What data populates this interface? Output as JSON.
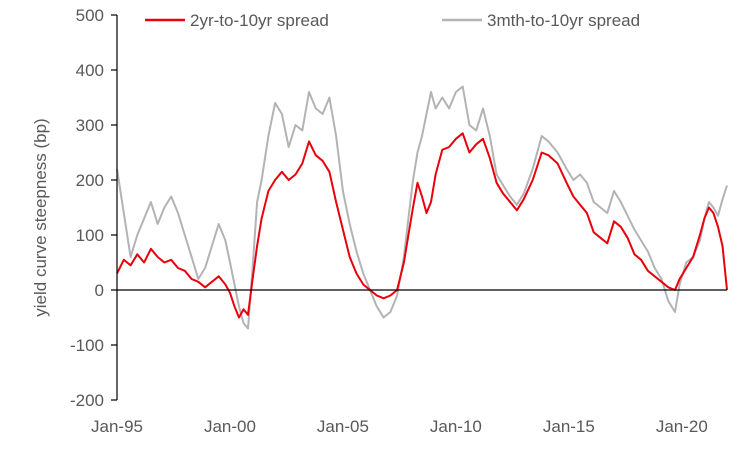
{
  "chart_data": {
    "type": "line",
    "title": "",
    "xlabel": "",
    "ylabel": "yield curve steepness (bp)",
    "ylim": [
      -200,
      500
    ],
    "yticks": [
      -200,
      -100,
      0,
      100,
      200,
      300,
      400,
      500
    ],
    "xticks": [
      "Jan-95",
      "Jan-00",
      "Jan-05",
      "Jan-10",
      "Jan-15",
      "Jan-20"
    ],
    "xlim": [
      1995.0,
      2022.0
    ],
    "grid": false,
    "legend": "top",
    "zero_line": true,
    "series": [
      {
        "name": "2yr-to-10yr spread",
        "color": "#e8000b",
        "points": [
          [
            1995.0,
            30
          ],
          [
            1995.3,
            55
          ],
          [
            1995.6,
            45
          ],
          [
            1995.9,
            65
          ],
          [
            1996.2,
            50
          ],
          [
            1996.5,
            75
          ],
          [
            1996.8,
            60
          ],
          [
            1997.1,
            50
          ],
          [
            1997.4,
            55
          ],
          [
            1997.7,
            40
          ],
          [
            1998.0,
            35
          ],
          [
            1998.3,
            20
          ],
          [
            1998.6,
            15
          ],
          [
            1998.9,
            5
          ],
          [
            1999.2,
            15
          ],
          [
            1999.5,
            25
          ],
          [
            1999.8,
            10
          ],
          [
            2000.0,
            -5
          ],
          [
            2000.2,
            -30
          ],
          [
            2000.4,
            -50
          ],
          [
            2000.6,
            -35
          ],
          [
            2000.8,
            -45
          ],
          [
            2001.0,
            20
          ],
          [
            2001.2,
            80
          ],
          [
            2001.4,
            130
          ],
          [
            2001.7,
            180
          ],
          [
            2002.0,
            200
          ],
          [
            2002.3,
            215
          ],
          [
            2002.6,
            200
          ],
          [
            2002.9,
            210
          ],
          [
            2003.2,
            230
          ],
          [
            2003.5,
            270
          ],
          [
            2003.8,
            245
          ],
          [
            2004.1,
            235
          ],
          [
            2004.4,
            215
          ],
          [
            2004.7,
            160
          ],
          [
            2005.0,
            110
          ],
          [
            2005.3,
            60
          ],
          [
            2005.6,
            30
          ],
          [
            2005.9,
            10
          ],
          [
            2006.2,
            0
          ],
          [
            2006.5,
            -10
          ],
          [
            2006.8,
            -15
          ],
          [
            2007.1,
            -10
          ],
          [
            2007.4,
            0
          ],
          [
            2007.7,
            50
          ],
          [
            2007.9,
            100
          ],
          [
            2008.1,
            150
          ],
          [
            2008.3,
            195
          ],
          [
            2008.5,
            170
          ],
          [
            2008.7,
            140
          ],
          [
            2008.9,
            160
          ],
          [
            2009.1,
            210
          ],
          [
            2009.4,
            255
          ],
          [
            2009.7,
            260
          ],
          [
            2010.0,
            275
          ],
          [
            2010.3,
            285
          ],
          [
            2010.6,
            250
          ],
          [
            2010.9,
            265
          ],
          [
            2011.2,
            275
          ],
          [
            2011.5,
            240
          ],
          [
            2011.8,
            195
          ],
          [
            2012.1,
            175
          ],
          [
            2012.4,
            160
          ],
          [
            2012.7,
            145
          ],
          [
            2013.0,
            165
          ],
          [
            2013.4,
            200
          ],
          [
            2013.8,
            250
          ],
          [
            2014.1,
            245
          ],
          [
            2014.5,
            230
          ],
          [
            2014.9,
            195
          ],
          [
            2015.2,
            170
          ],
          [
            2015.5,
            155
          ],
          [
            2015.8,
            140
          ],
          [
            2016.1,
            105
          ],
          [
            2016.4,
            95
          ],
          [
            2016.7,
            85
          ],
          [
            2017.0,
            125
          ],
          [
            2017.3,
            115
          ],
          [
            2017.6,
            95
          ],
          [
            2017.9,
            65
          ],
          [
            2018.2,
            55
          ],
          [
            2018.5,
            35
          ],
          [
            2018.8,
            25
          ],
          [
            2019.1,
            15
          ],
          [
            2019.4,
            5
          ],
          [
            2019.7,
            0
          ],
          [
            2019.9,
            20
          ],
          [
            2020.2,
            40
          ],
          [
            2020.5,
            60
          ],
          [
            2020.8,
            100
          ],
          [
            2021.0,
            130
          ],
          [
            2021.2,
            150
          ],
          [
            2021.4,
            140
          ],
          [
            2021.6,
            115
          ],
          [
            2021.8,
            80
          ],
          [
            2022.0,
            0
          ]
        ]
      },
      {
        "name": "3mth-to-10yr spread",
        "color": "#b3b3b6",
        "points": [
          [
            1995.0,
            220
          ],
          [
            1995.3,
            140
          ],
          [
            1995.6,
            60
          ],
          [
            1995.9,
            100
          ],
          [
            1996.2,
            130
          ],
          [
            1996.5,
            160
          ],
          [
            1996.8,
            120
          ],
          [
            1997.1,
            150
          ],
          [
            1997.4,
            170
          ],
          [
            1997.7,
            140
          ],
          [
            1998.0,
            100
          ],
          [
            1998.3,
            60
          ],
          [
            1998.6,
            20
          ],
          [
            1998.9,
            40
          ],
          [
            1999.2,
            80
          ],
          [
            1999.5,
            120
          ],
          [
            1999.8,
            90
          ],
          [
            2000.0,
            50
          ],
          [
            2000.2,
            10
          ],
          [
            2000.4,
            -30
          ],
          [
            2000.6,
            -60
          ],
          [
            2000.8,
            -70
          ],
          [
            2001.0,
            40
          ],
          [
            2001.2,
            160
          ],
          [
            2001.4,
            200
          ],
          [
            2001.7,
            280
          ],
          [
            2002.0,
            340
          ],
          [
            2002.3,
            320
          ],
          [
            2002.6,
            260
          ],
          [
            2002.9,
            300
          ],
          [
            2003.2,
            290
          ],
          [
            2003.5,
            360
          ],
          [
            2003.8,
            330
          ],
          [
            2004.1,
            320
          ],
          [
            2004.4,
            350
          ],
          [
            2004.7,
            280
          ],
          [
            2005.0,
            180
          ],
          [
            2005.3,
            120
          ],
          [
            2005.6,
            70
          ],
          [
            2005.9,
            30
          ],
          [
            2006.2,
            0
          ],
          [
            2006.5,
            -30
          ],
          [
            2006.8,
            -50
          ],
          [
            2007.1,
            -40
          ],
          [
            2007.4,
            -10
          ],
          [
            2007.7,
            60
          ],
          [
            2007.9,
            130
          ],
          [
            2008.1,
            200
          ],
          [
            2008.3,
            250
          ],
          [
            2008.5,
            280
          ],
          [
            2008.7,
            320
          ],
          [
            2008.9,
            360
          ],
          [
            2009.1,
            330
          ],
          [
            2009.4,
            350
          ],
          [
            2009.7,
            330
          ],
          [
            2010.0,
            360
          ],
          [
            2010.3,
            370
          ],
          [
            2010.6,
            300
          ],
          [
            2010.9,
            290
          ],
          [
            2011.2,
            330
          ],
          [
            2011.5,
            280
          ],
          [
            2011.8,
            210
          ],
          [
            2012.1,
            190
          ],
          [
            2012.4,
            170
          ],
          [
            2012.7,
            155
          ],
          [
            2013.0,
            175
          ],
          [
            2013.4,
            220
          ],
          [
            2013.8,
            280
          ],
          [
            2014.1,
            270
          ],
          [
            2014.5,
            250
          ],
          [
            2014.9,
            220
          ],
          [
            2015.2,
            200
          ],
          [
            2015.5,
            210
          ],
          [
            2015.8,
            195
          ],
          [
            2016.1,
            160
          ],
          [
            2016.4,
            150
          ],
          [
            2016.7,
            140
          ],
          [
            2017.0,
            180
          ],
          [
            2017.3,
            160
          ],
          [
            2017.6,
            135
          ],
          [
            2017.9,
            110
          ],
          [
            2018.2,
            90
          ],
          [
            2018.5,
            70
          ],
          [
            2018.8,
            40
          ],
          [
            2019.1,
            20
          ],
          [
            2019.4,
            -20
          ],
          [
            2019.7,
            -40
          ],
          [
            2019.9,
            10
          ],
          [
            2020.2,
            50
          ],
          [
            2020.5,
            60
          ],
          [
            2020.8,
            90
          ],
          [
            2021.0,
            130
          ],
          [
            2021.2,
            160
          ],
          [
            2021.4,
            150
          ],
          [
            2021.6,
            135
          ],
          [
            2021.8,
            165
          ],
          [
            2022.0,
            190
          ]
        ]
      }
    ]
  }
}
